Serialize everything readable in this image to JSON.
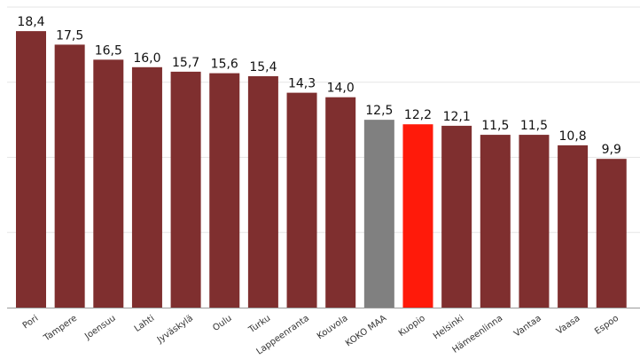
{
  "chart_data": {
    "type": "bar",
    "categories": [
      "Pori",
      "Tampere",
      "Joensuu",
      "Lahti",
      "Jyväskylä",
      "Oulu",
      "Turku",
      "Lappeenranta",
      "Kouvola",
      "KOKO MAA",
      "Kuopio",
      "Helsinki",
      "Hämeenlinna",
      "Vantaa",
      "Vaasa",
      "Espoo"
    ],
    "values": [
      18.4,
      17.5,
      16.5,
      16.0,
      15.7,
      15.6,
      15.4,
      14.3,
      14.0,
      12.5,
      12.2,
      12.1,
      11.5,
      11.5,
      10.8,
      9.9
    ],
    "value_labels": [
      "18,4",
      "17,5",
      "16,5",
      "16,0",
      "15,7",
      "15,6",
      "15,4",
      "14,3",
      "14,0",
      "12,5",
      "12,2",
      "12,1",
      "11,5",
      "11,5",
      "10,8",
      "9,9"
    ],
    "ylim": [
      0,
      20
    ],
    "grid": true,
    "colors": {
      "default": "#7f2f2f",
      "highlight_country": "#808080",
      "highlight_city": "#ff1a0a",
      "grid": "#e6e6e6",
      "axis": "#9a9a9a"
    },
    "highlights": {
      "KOKO MAA": "highlight_country",
      "Kuopio": "highlight_city"
    }
  }
}
